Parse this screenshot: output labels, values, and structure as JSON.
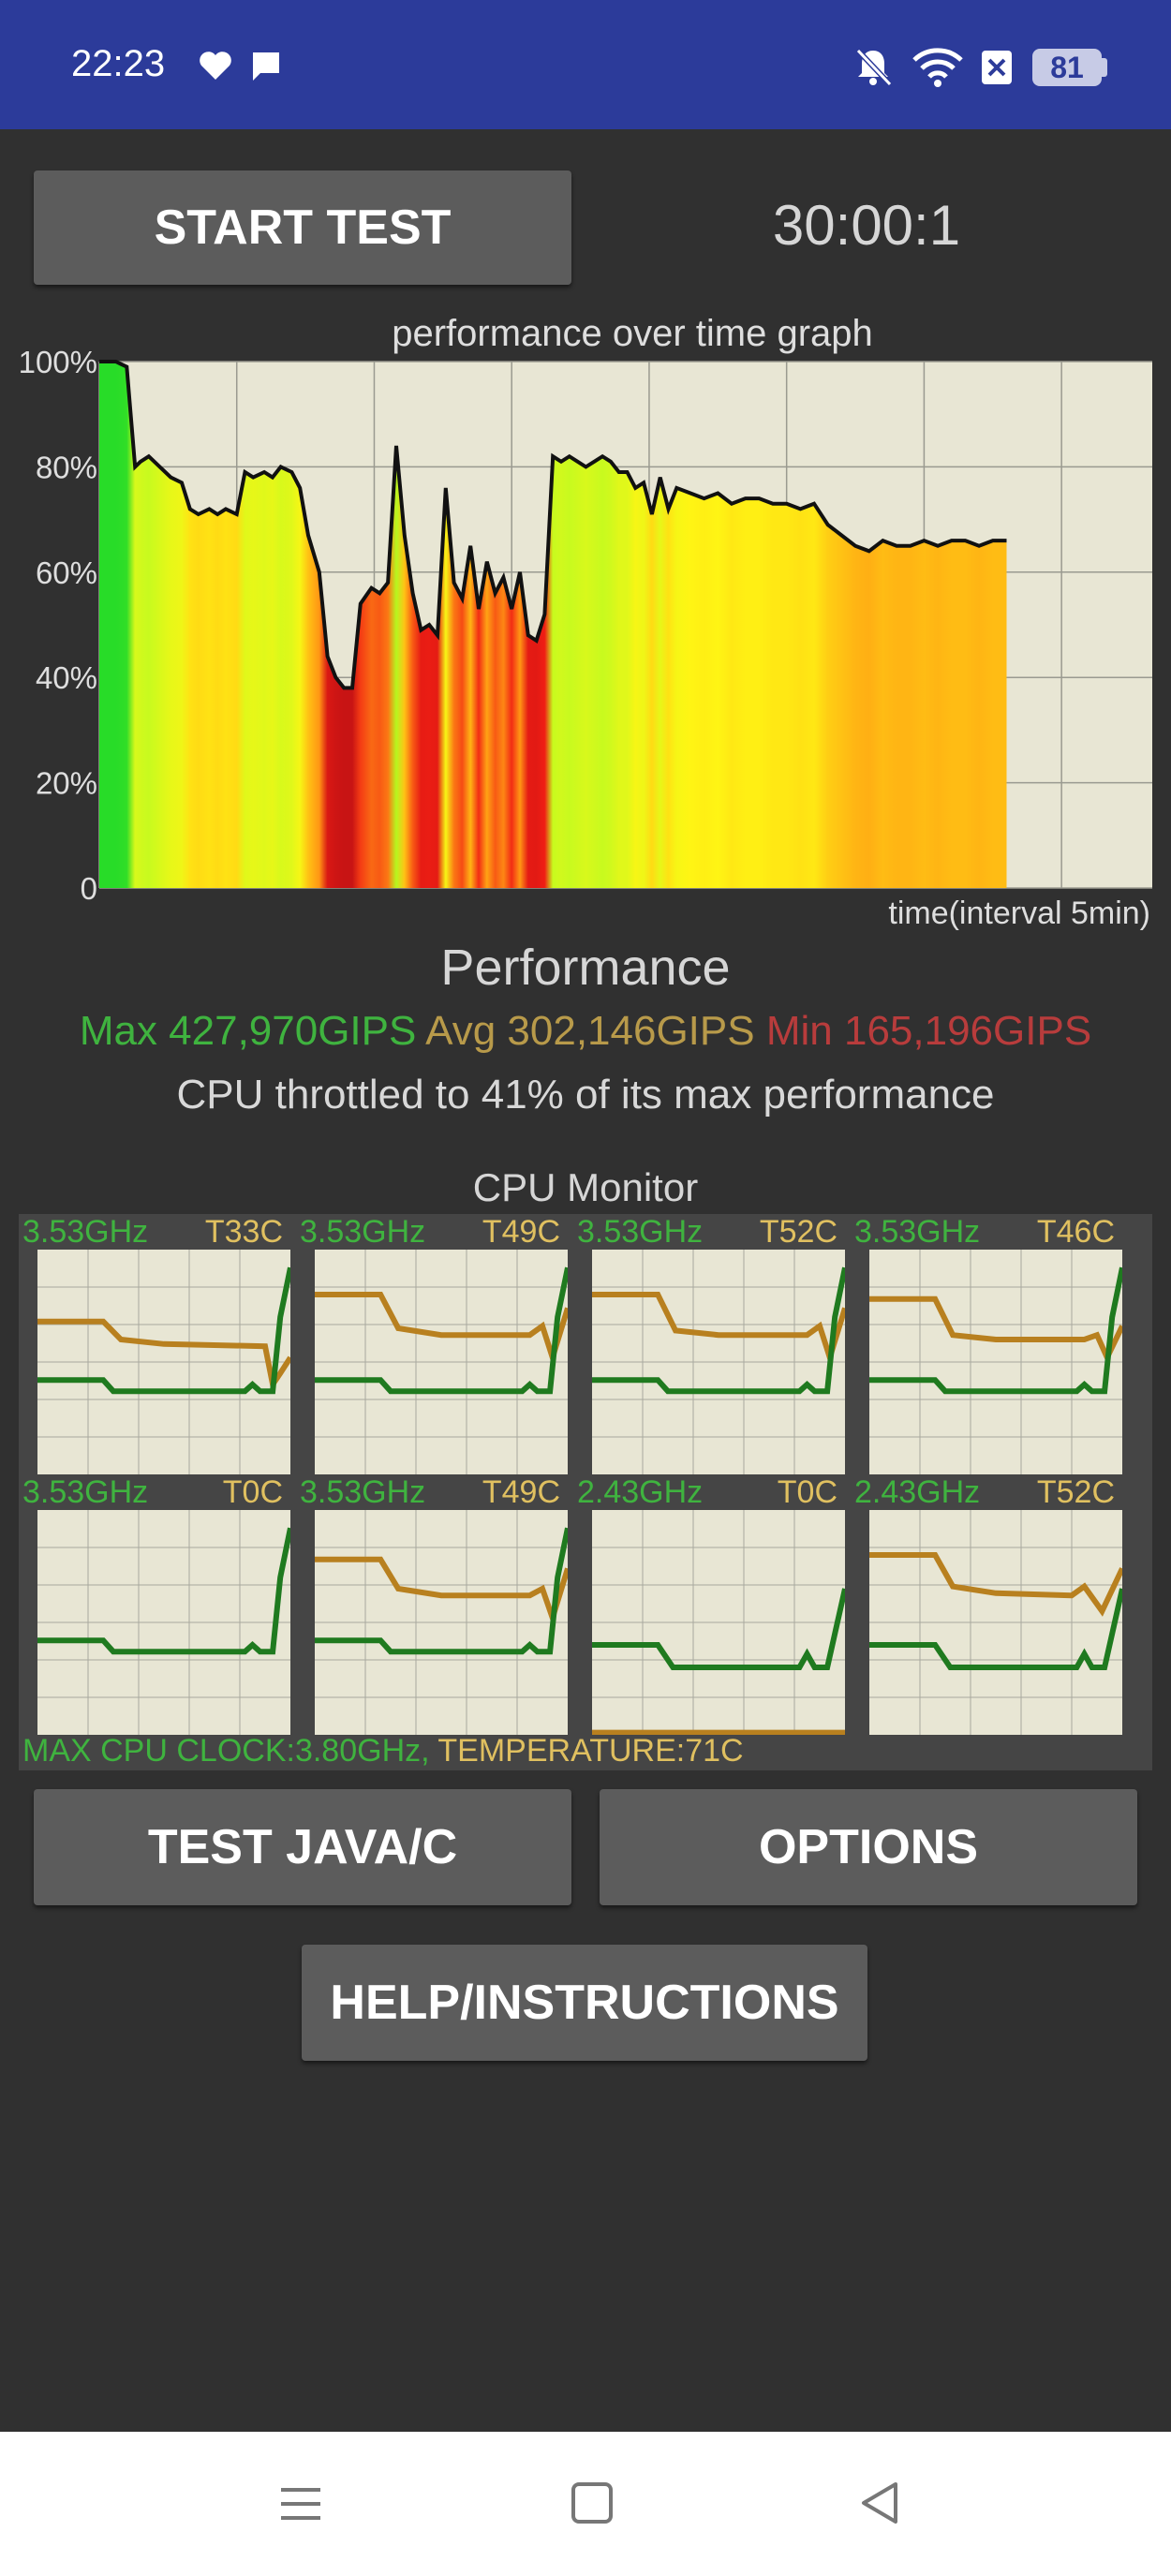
{
  "status_bar": {
    "time": "22:23",
    "battery": "81",
    "icons": [
      "heart-icon",
      "chat-icon",
      "bell-muted-icon",
      "wifi-icon",
      "sim-x-icon",
      "battery-icon"
    ]
  },
  "controls": {
    "start_test_label": "START TEST",
    "timer": "30:00:1",
    "test_java_label": "TEST JAVA/C",
    "options_label": "OPTIONS",
    "help_label": "HELP/INSTRUCTIONS"
  },
  "graph": {
    "title": "performance over time graph",
    "xlabel": "time(interval 5min)"
  },
  "performance": {
    "heading": "Performance",
    "max": "Max 427,970GIPS",
    "avg": "Avg 302,146GIPS",
    "min": "Min 165,196GIPS",
    "throttle_text": "CPU throttled to 41% of its max performance"
  },
  "chart_data": {
    "type": "area",
    "title": "performance over time graph",
    "xlabel": "time(interval 5min)",
    "ylabel": "",
    "y_tick_labels": [
      "100%",
      "80%",
      "60%",
      "40%",
      "20%",
      "0"
    ],
    "ylim": [
      0,
      100
    ],
    "xlim": [
      0,
      38.3
    ],
    "grid": true,
    "x": [
      0,
      0.6,
      1,
      1.3,
      1.5,
      1.8,
      2.2,
      2.6,
      3,
      3.3,
      3.6,
      4,
      4.3,
      4.6,
      5,
      5.3,
      5.6,
      6,
      6.3,
      6.6,
      7,
      7.3,
      7.6,
      8,
      8.3,
      8.6,
      8.9,
      9.2,
      9.5,
      9.9,
      10.2,
      10.5,
      10.8,
      11.1,
      11.4,
      11.7,
      12,
      12.3,
      12.6,
      12.9,
      13.2,
      13.5,
      13.8,
      14.1,
      14.4,
      14.7,
      15,
      15.3,
      15.6,
      15.9,
      16.2,
      16.5,
      16.8,
      17.1,
      17.4,
      17.7,
      18,
      18.3,
      18.6,
      18.9,
      19.2,
      19.5,
      19.8,
      20.1,
      20.4,
      20.7,
      21,
      21.5,
      22,
      22.5,
      23,
      23.5,
      24,
      24.5,
      25,
      25.5,
      26,
      26.5,
      27,
      27.5,
      28,
      28.5,
      29,
      29.5,
      30,
      30.5,
      31,
      31.5,
      32,
      32.5,
      33
    ],
    "series": [
      {
        "values": [
          100,
          100,
          99,
          80,
          81,
          82,
          80,
          78,
          77,
          72,
          71,
          72,
          71,
          72,
          71,
          79,
          78,
          79,
          78,
          80,
          79,
          76,
          67,
          60,
          44,
          40,
          38,
          38,
          54,
          57,
          56,
          58,
          84,
          67,
          56,
          49,
          50,
          48,
          76,
          58,
          55,
          65,
          53,
          62,
          56,
          59,
          53,
          60,
          48,
          47,
          52,
          82,
          81,
          82,
          81,
          80,
          81,
          82,
          81,
          79,
          79,
          76,
          77,
          71,
          78,
          72,
          76,
          75,
          74,
          75,
          73,
          74,
          74,
          73,
          73,
          72,
          73,
          69,
          67,
          65,
          64,
          66,
          65,
          65,
          66,
          65,
          66,
          66,
          65,
          66,
          66
        ]
      }
    ]
  },
  "cpu_monitor": {
    "title": "CPU Monitor",
    "cores": [
      {
        "freq": "3.53GHz",
        "temp": "T33C"
      },
      {
        "freq": "3.53GHz",
        "temp": "T49C"
      },
      {
        "freq": "3.53GHz",
        "temp": "T52C"
      },
      {
        "freq": "3.53GHz",
        "temp": "T46C"
      },
      {
        "freq": "3.53GHz",
        "temp": "T0C"
      },
      {
        "freq": "3.53GHz",
        "temp": "T49C"
      },
      {
        "freq": "2.43GHz",
        "temp": "T0C"
      },
      {
        "freq": "2.43GHz",
        "temp": "T52C"
      }
    ],
    "footer_clock": "MAX CPU CLOCK:3.80GHz,",
    "footer_temp": " TEMPERATURE:71C",
    "colors": {
      "freq_line": "#1f7a1f",
      "temp_line": "#b8801f"
    }
  },
  "nav_bar": {
    "icons": [
      "menu-icon",
      "home-icon",
      "back-icon"
    ]
  }
}
